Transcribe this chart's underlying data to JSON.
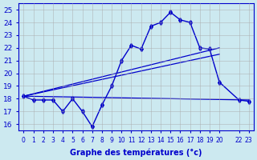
{
  "title": "Graphe des températures (°c)",
  "background_color": "#cce9f0",
  "line_color": "#0000cc",
  "grid_color": "#aaaaaa",
  "xlim": [
    -0.5,
    23.5
  ],
  "ylim": [
    15.5,
    25.5
  ],
  "yticks": [
    16,
    17,
    18,
    19,
    20,
    21,
    22,
    23,
    24,
    25
  ],
  "series1_x": [
    0,
    1,
    2,
    3,
    4,
    5,
    6,
    7,
    8,
    9,
    10,
    11,
    12,
    13,
    14,
    15,
    16,
    17,
    18,
    19,
    20,
    22,
    23
  ],
  "series1_y": [
    18.2,
    17.9,
    17.9,
    17.9,
    17.0,
    18.0,
    17.0,
    15.8,
    17.5,
    19.0,
    21.0,
    22.2,
    21.9,
    23.7,
    24.0,
    24.8,
    24.2,
    24.0,
    22.0,
    21.9,
    19.3,
    17.9,
    17.8
  ],
  "line2_x": [
    0,
    20
  ],
  "line2_y": [
    18.2,
    22.0
  ],
  "line3_x": [
    0,
    20
  ],
  "line3_y": [
    18.2,
    21.5
  ],
  "line4_x": [
    0,
    23
  ],
  "line4_y": [
    18.2,
    17.9
  ]
}
